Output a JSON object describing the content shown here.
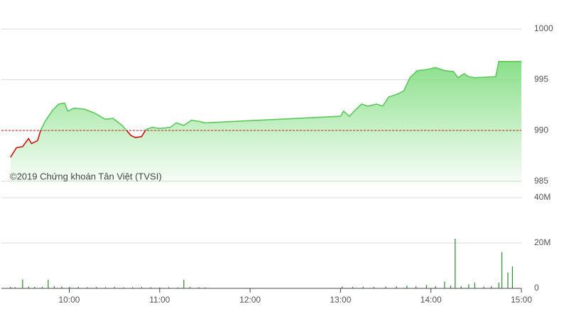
{
  "chart_data": [
    {
      "type": "line",
      "x": [
        "09:21",
        "09:25",
        "09:29",
        "09:33",
        "09:35",
        "09:39",
        "09:41",
        "09:44",
        "09:49",
        "09:53",
        "09:57",
        "09:59",
        "10:03",
        "10:10",
        "10:17",
        "10:24",
        "10:29",
        "10:35",
        "10:38",
        "10:41",
        "10:44",
        "10:48",
        "10:51",
        "10:55",
        "11:00",
        "11:07",
        "11:11",
        "11:16",
        "11:21",
        "11:26",
        "11:30",
        "13:00",
        "13:02",
        "13:06",
        "13:09",
        "13:14",
        "13:18",
        "13:24",
        "13:28",
        "13:32",
        "13:38",
        "13:42",
        "13:46",
        "13:51",
        "13:57",
        "14:03",
        "14:09",
        "14:15",
        "14:18",
        "14:22",
        "14:25",
        "14:29",
        "14:43",
        "14:45",
        "15:00"
      ],
      "values": [
        987.35,
        988.3,
        988.4,
        989.2,
        988.7,
        989.0,
        990.0,
        990.9,
        992.0,
        992.6,
        992.7,
        991.9,
        992.2,
        992.1,
        991.7,
        991.1,
        991.2,
        990.5,
        990.0,
        989.5,
        989.3,
        989.4,
        990.1,
        990.3,
        990.2,
        990.3,
        990.75,
        990.5,
        991.0,
        990.9,
        990.75,
        991.4,
        991.9,
        991.4,
        991.9,
        992.6,
        992.4,
        992.6,
        992.4,
        993.3,
        993.6,
        993.9,
        995.2,
        995.9,
        996.0,
        996.2,
        995.9,
        995.8,
        995.2,
        995.6,
        995.3,
        995.2,
        995.3,
        996.8,
        996.8
      ],
      "reference": 990,
      "color": "#5cc85c",
      "color_down": "#cc1111",
      "fill_color": "#7ddc7d",
      "reference_color": "#d42020",
      "xlim": [
        "09:15",
        "15:00"
      ],
      "ylim": [
        984.7,
        1000
      ],
      "yticks": [
        1000,
        995,
        990,
        985
      ],
      "grid": true,
      "annotation": "©2019 Chứng khoán Tân Việt (TVSI)"
    },
    {
      "type": "bar",
      "x": [
        "09:21",
        "09:24",
        "09:29",
        "09:33",
        "09:37",
        "09:42",
        "09:46",
        "09:50",
        "09:55",
        "10:00",
        "10:06",
        "10:12",
        "10:18",
        "10:24",
        "10:30",
        "10:36",
        "10:42",
        "10:48",
        "10:54",
        "11:00",
        "11:06",
        "11:12",
        "11:16",
        "11:20",
        "11:26",
        "11:30",
        "13:01",
        "13:08",
        "13:15",
        "13:22",
        "13:30",
        "13:37",
        "13:44",
        "13:50",
        "13:57",
        "14:03",
        "14:09",
        "14:13",
        "14:16",
        "14:20",
        "14:25",
        "14:29",
        "14:35",
        "14:40",
        "14:45",
        "14:47",
        "14:51",
        "14:54"
      ],
      "values": [
        0.6,
        0.5,
        4.0,
        0.8,
        0.6,
        0.7,
        3.8,
        1.0,
        0.8,
        0.6,
        0.7,
        0.5,
        0.6,
        0.5,
        0.6,
        0.4,
        0.5,
        0.6,
        0.5,
        0.4,
        0.5,
        0.4,
        3.8,
        0.6,
        0.5,
        0.4,
        0.8,
        0.6,
        0.7,
        0.6,
        0.8,
        0.9,
        1.2,
        0.9,
        1.5,
        1.0,
        3.0,
        1.2,
        21.9,
        1.0,
        1.8,
        2.5,
        0.8,
        1.0,
        2.5,
        16.0,
        7.0,
        9.7
      ],
      "color": "#2a8a2a",
      "xlim": [
        "09:15",
        "15:00"
      ],
      "xticks": [
        "10:00",
        "11:00",
        "12:00",
        "13:00",
        "14:00",
        "15:00"
      ],
      "ylim": [
        0,
        40
      ],
      "yticks": [
        {
          "value": 40,
          "label": "40M"
        },
        {
          "value": 20,
          "label": "20M"
        },
        0
      ],
      "grid": true
    }
  ]
}
